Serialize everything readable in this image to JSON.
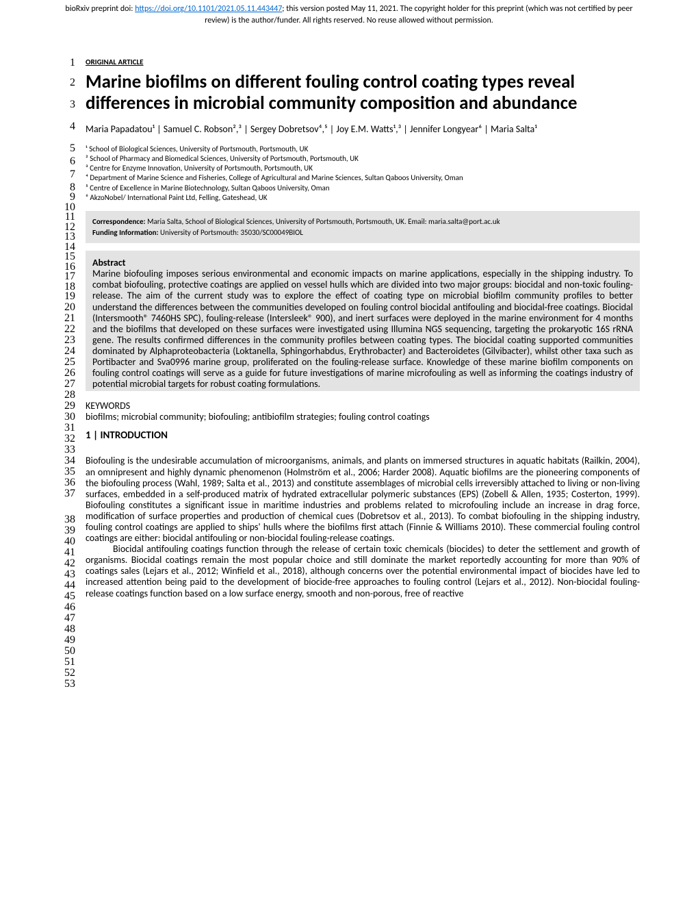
{
  "preprint_notice": {
    "prefix": "bioRxiv preprint doi: ",
    "doi_url": "https://doi.org/10.1101/2021.05.11.443447",
    "suffix": "; this version posted May 11, 2021. The copyright holder for this preprint (which was not certified by peer review) is the author/funder. All rights reserved. No reuse allowed without permission."
  },
  "article_type": "ORIGINAL ARTICLE",
  "title": "Marine biofilms on different fouling control coating types reveal differences in microbial community composition and abundance",
  "authors": "Maria Papadatou¹ | Samuel C. Robson²,³ | Sergey Dobretsov⁴,⁵ | Joy E.M. Watts¹,³ | Jennifer Longyear⁶ | Maria Salta¹",
  "affiliations": [
    "¹ School of Biological Sciences, University of Portsmouth, Portsmouth, UK",
    "² School of Pharmacy and Biomedical Sciences, University of Portsmouth, Portsmouth, UK",
    "³ Centre for Enzyme Innovation, University of Portsmouth, Portsmouth, UK",
    "⁴ Department of Marine Science and Fisheries, College of Agricultural and Marine Sciences, Sultan Qaboos University, Oman",
    "⁵ Centre of Excellence in Marine Biotechnology, Sultan Qaboos University, Oman",
    "⁶ AkzoNobel/ International Paint Ltd, Felling, Gateshead, UK"
  ],
  "correspondence_label": "Correspondence:",
  "correspondence_text": " Maria Salta, School of Biological Sciences, University of Portsmouth, Portsmouth, UK. Email: maria.salta@port.ac.uk",
  "funding_label": "Funding Information:",
  "funding_text": " University of Portsmouth: 35030/SC00049BIOL",
  "abstract_heading": "Abstract",
  "abstract_text": "Marine biofouling imposes serious environmental and economic impacts on marine applications, especially in the shipping industry. To combat biofouling, protective coatings are applied on vessel hulls which are divided into two major groups: biocidal and non-toxic fouling-release. The aim of the current study was to explore the effect of coating type on microbial biofilm community profiles to better understand the differences between the communities developed on fouling control biocidal antifouling and biocidal-free coatings. Biocidal (Intersmooth® 7460HS SPC), fouling-release (Intersleek® 900), and inert surfaces were deployed in the marine environment for 4 months and the biofilms that developed on these surfaces were investigated using Illumina NGS sequencing, targeting the prokaryotic 16S rRNA gene. The results confirmed differences in the community profiles between coating types. The biocidal coating supported communities dominated by Alphaproteobacteria (Loktanella, Sphingorhabdus, Erythrobacter) and Bacteroidetes (Gilvibacter), whilst other taxa such as Portibacter and Sva0996 marine group, proliferated on the fouling-release surface. Knowledge of these marine biofilm components on fouling control coatings will serve as a guide for future investigations of marine microfouling as well as informing the coatings industry of potential microbial targets for robust coating formulations.",
  "keywords_label": "KEYWORDS",
  "keywords_text": "biofilms; microbial community; biofouling; antibiofilm strategies; fouling control coatings",
  "section_heading": "1 | INTRODUCTION",
  "body_p1": "Biofouling is the undesirable accumulation of microorganisms, animals, and plants on immersed structures in aquatic habitats (Railkin, 2004), an omnipresent and highly dynamic phenomenon (Holmström et al., 2006; Harder 2008). Aquatic biofilms are the pioneering components of the biofouling process (Wahl, 1989; Salta et al., 2013) and constitute assemblages of microbial cells irreversibly attached to living or non-living surfaces, embedded in a self-produced matrix of hydrated extracellular polymeric substances (EPS) (Zobell & Allen, 1935; Costerton, 1999). Biofouling constitutes a significant issue in maritime industries and problems related to microfouling include an increase in drag force, modification of surface properties and production of chemical cues (Dobretsov et al., 2013). To combat biofouling in the shipping industry, fouling control coatings are applied to ships' hulls where the biofilms first attach (Finnie & Williams 2010). These commercial fouling control coatings are either: biocidal antifouling or non-biocidal fouling-release coatings.",
  "body_p2": "Biocidal antifouling coatings function through the release of certain toxic chemicals (biocides) to deter the settlement and growth of organisms. Biocidal coatings remain the most popular choice and still dominate the market reportedly accounting for more than 90% of coatings sales (Lejars et al., 2012; Winfield et al., 2018), although concerns over the potential environmental impact of biocides have led to increased attention being paid to the development of biocide-free approaches to fouling control (Lejars et al., 2012). Non-biocidal fouling-release coatings function based on a low surface energy, smooth and non-porous, free of reactive",
  "line_numbers": {
    "start": 1,
    "end": 53
  },
  "colors": {
    "link": "#0066cc",
    "highlight_bg": "#e3e3e3",
    "text": "#000000",
    "bg": "#ffffff"
  }
}
